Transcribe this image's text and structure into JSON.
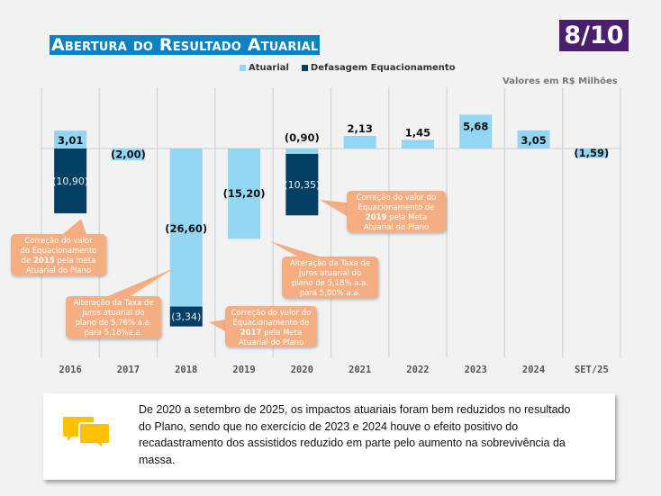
{
  "header": {
    "title": "Abertura do Resultado Atuarial",
    "page_badge": "8/10"
  },
  "units_label": "Valores em R$ Milhões",
  "colors": {
    "atuarial": "#92d6f4",
    "defasagem": "#033f63",
    "callout": "#f4ae82",
    "title_bg": "#0e82c0",
    "badge_bg": "#4a1f6b",
    "note_icon": "#ffc000"
  },
  "chart_data": {
    "type": "bar",
    "stacked": true,
    "title": "Abertura do Resultado Atuarial",
    "xlabel": "",
    "ylabel": "Valores em R$ Milhões",
    "legend_position": "top-center",
    "grid": "vertical",
    "categories": [
      "2016",
      "2017",
      "2018",
      "2019",
      "2020",
      "2021",
      "2022",
      "2023",
      "2024",
      "SET/25"
    ],
    "series": [
      {
        "name": "Atuarial",
        "values": [
          3.01,
          -2.0,
          -26.6,
          -15.2,
          -0.9,
          2.13,
          1.45,
          5.68,
          3.05,
          -1.59
        ],
        "labels": [
          "3,01",
          "(2,00)",
          "(26,60)",
          "(15,20)",
          "(0,90)",
          "2,13",
          "1,45",
          "5,68",
          "3,05",
          "(1,59)"
        ]
      },
      {
        "name": "Defasagem Equacionamento",
        "values": [
          -10.9,
          0,
          -3.34,
          0,
          -10.35,
          0,
          0,
          0,
          0,
          0
        ],
        "labels": [
          "(10,90)",
          "",
          "(3,34)",
          "",
          "(10,35)",
          "",
          "",
          "",
          "",
          ""
        ]
      }
    ],
    "annotations": [
      {
        "id": "c2015",
        "category": "2016",
        "lines": [
          "Correção do valor",
          "do Equacionamento",
          "de |2015| pela meta",
          "Atuarial do Plano"
        ]
      },
      {
        "id": "ctaxa1",
        "category": "2018",
        "lines": [
          "Alteração da Taxa de",
          "juros atuarial do",
          "plano de 5,76% a.a.",
          "para 5,18%a.a."
        ]
      },
      {
        "id": "c2017",
        "category": "2018",
        "lines": [
          "Correção do valor do",
          "Equacionamento de",
          "|2017| pela Meta",
          "Atuarial do Plano"
        ]
      },
      {
        "id": "ctaxa2",
        "category": "2019",
        "lines": [
          "Alteração da Taxa de",
          "juros atuarial do",
          "plano de 5,18% a.a.",
          "para 5,00% a.a."
        ]
      },
      {
        "id": "c2019",
        "category": "2020",
        "lines": [
          "Correção do valor do",
          "Equacionamento de",
          "|2019| pela Meta",
          "Atuarial do Plano"
        ]
      }
    ]
  },
  "note": {
    "icon": "speech-bubbles-icon",
    "text": "De 2020 a setembro de 2025, os impactos atuariais foram bem reduzidos no resultado do Plano, sendo que no exercício de 2023 e 2024 houve o efeito positivo do recadastramento dos assistidos reduzido em parte pelo aumento na sobrevivência da massa."
  }
}
